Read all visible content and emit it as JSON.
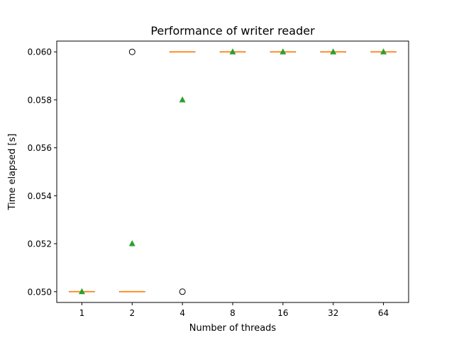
{
  "chart_data": {
    "type": "box",
    "title": "Performance of writer reader",
    "xlabel": "Number of threads",
    "ylabel": "Time elapsed [s]",
    "categories": [
      "1",
      "2",
      "4",
      "8",
      "16",
      "32",
      "64"
    ],
    "ylim": [
      0.04955,
      0.06045
    ],
    "yticks": [
      "0.050",
      "0.052",
      "0.054",
      "0.056",
      "0.058",
      "0.060"
    ],
    "boxes": [
      {
        "category": "1",
        "q1": 0.05,
        "median": 0.05,
        "q3": 0.05,
        "whisker_low": 0.05,
        "whisker_high": 0.05,
        "mean": 0.05,
        "outliers": []
      },
      {
        "category": "2",
        "q1": 0.05,
        "median": 0.05,
        "q3": 0.05,
        "whisker_low": 0.05,
        "whisker_high": 0.05,
        "mean": 0.052,
        "outliers": [
          0.06
        ]
      },
      {
        "category": "4",
        "q1": 0.06,
        "median": 0.06,
        "q3": 0.06,
        "whisker_low": 0.06,
        "whisker_high": 0.06,
        "mean": 0.058,
        "outliers": [
          0.05
        ]
      },
      {
        "category": "8",
        "q1": 0.06,
        "median": 0.06,
        "q3": 0.06,
        "whisker_low": 0.06,
        "whisker_high": 0.06,
        "mean": 0.06,
        "outliers": []
      },
      {
        "category": "16",
        "q1": 0.06,
        "median": 0.06,
        "q3": 0.06,
        "whisker_low": 0.06,
        "whisker_high": 0.06,
        "mean": 0.06,
        "outliers": []
      },
      {
        "category": "32",
        "q1": 0.06,
        "median": 0.06,
        "q3": 0.06,
        "whisker_low": 0.06,
        "whisker_high": 0.06,
        "mean": 0.06,
        "outliers": []
      },
      {
        "category": "64",
        "q1": 0.06,
        "median": 0.06,
        "q3": 0.06,
        "whisker_low": 0.06,
        "whisker_high": 0.06,
        "mean": 0.06,
        "outliers": []
      }
    ],
    "colors": {
      "median": "#ff7f0e",
      "mean": "#2ca02c",
      "box": "#000000",
      "outlier": "#000000"
    },
    "grid": false,
    "legend": "none"
  }
}
